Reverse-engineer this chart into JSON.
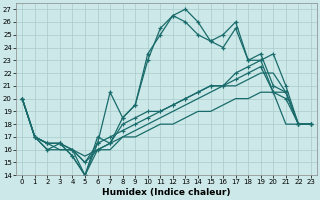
{
  "xlabel": "Humidex (Indice chaleur)",
  "background_color": "#cce8e8",
  "grid_color": "#aacccc",
  "line_color": "#1a6b6b",
  "xlim": [
    -0.5,
    23.5
  ],
  "ylim": [
    14,
    27.5
  ],
  "yticks": [
    14,
    15,
    16,
    17,
    18,
    19,
    20,
    21,
    22,
    23,
    24,
    25,
    26,
    27
  ],
  "xticks": [
    0,
    1,
    2,
    3,
    4,
    5,
    6,
    7,
    8,
    9,
    10,
    11,
    12,
    13,
    14,
    15,
    16,
    17,
    18,
    19,
    20,
    21,
    22,
    23
  ],
  "series": [
    {
      "y": [
        20,
        17,
        16.5,
        16.5,
        16,
        15,
        16.5,
        17,
        17.5,
        18,
        18.5,
        19,
        19.5,
        20,
        20.5,
        21,
        21,
        22,
        22.5,
        23,
        23.5,
        21,
        18,
        18
      ],
      "marker": "+"
    },
    {
      "y": [
        20,
        17,
        16.5,
        16.5,
        15.5,
        14,
        17,
        16.5,
        18,
        18.5,
        19,
        19,
        19.5,
        20,
        20.5,
        21,
        21,
        21.5,
        22,
        22.5,
        20.5,
        20.5,
        18,
        18
      ],
      "marker": "+"
    },
    {
      "y": [
        20,
        17,
        16.5,
        16,
        16,
        15,
        16,
        16.5,
        17,
        17.5,
        18,
        18.5,
        19,
        19.5,
        20,
        20.5,
        21,
        21,
        21.5,
        22,
        22,
        20.5,
        18,
        18
      ],
      "marker": null
    },
    {
      "y": [
        20,
        17,
        16,
        16,
        16,
        15.5,
        16,
        16,
        17,
        17,
        17.5,
        18,
        18,
        18.5,
        19,
        19,
        19.5,
        20,
        20,
        20.5,
        20.5,
        18,
        18,
        18
      ],
      "marker": null
    }
  ],
  "marked_series": [
    {
      "y": [
        20,
        17,
        16.5,
        16.5,
        16,
        14,
        16.5,
        20.5,
        18.5,
        19.5,
        23,
        25.5,
        26.5,
        27,
        26,
        24.5,
        25,
        26,
        23,
        23.5,
        21,
        20.5,
        18,
        18
      ],
      "marker": "+"
    },
    {
      "y": [
        20,
        17,
        16,
        16.5,
        15.5,
        14,
        16,
        16.5,
        18.5,
        19.5,
        23.5,
        25,
        26.5,
        26,
        25,
        24.5,
        24,
        25.5,
        23,
        23,
        20.5,
        20,
        18,
        18
      ],
      "marker": "+"
    }
  ]
}
